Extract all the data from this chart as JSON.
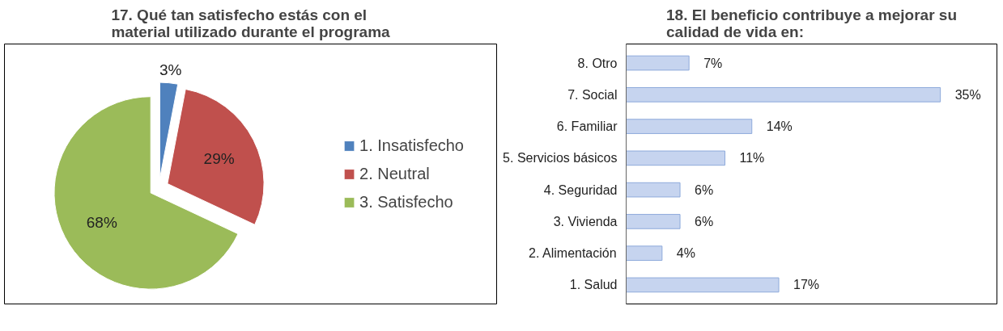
{
  "chart_data": [
    {
      "type": "pie",
      "title": "17. Qué tan satisfecho estás con el\nmaterial utilizado durante el programa",
      "categories": [
        "1. Insatisfecho",
        "2. Neutral",
        "3. Satisfecho"
      ],
      "values": [
        3,
        29,
        68
      ],
      "colors": [
        "#4f81bd",
        "#c0504d",
        "#9bbb59"
      ],
      "value_labels": [
        "3%",
        "29%",
        "68%"
      ],
      "legend": "right"
    },
    {
      "type": "bar",
      "orientation": "horizontal",
      "title": "18. El beneficio contribuye a mejorar su\ncalidad de vida en:",
      "categories": [
        "8. Otro",
        "7. Social",
        "6. Familiar",
        "5. Servicios básicos",
        "4. Seguridad",
        "3. Vivienda",
        "2. Alimentación",
        "1. Salud"
      ],
      "values": [
        7,
        35,
        14,
        11,
        6,
        6,
        4,
        17
      ],
      "color": "#c6d4ef",
      "value_labels": [
        "7%",
        "35%",
        "14%",
        "11%",
        "6%",
        "6%",
        "4%",
        "17%"
      ],
      "tick_labels": "y"
    }
  ]
}
